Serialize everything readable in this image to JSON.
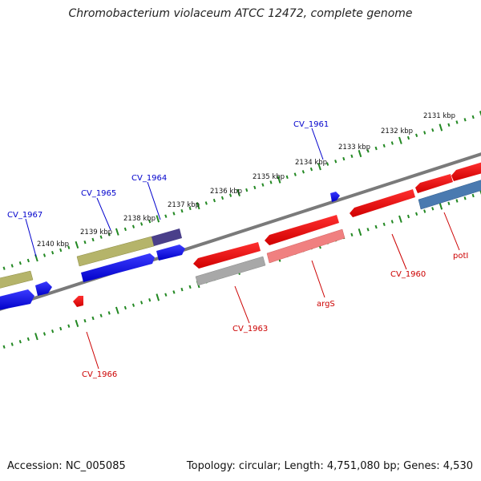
{
  "title": "Chromobacterium violaceum ATCC 12472, complete genome",
  "footer": {
    "accession": "Accession: NC_005085",
    "summary": "Topology: circular; Length: 4,751,080 bp; Genes: 4,530"
  },
  "kbp_labels": [
    "2131 kbp",
    "2132 kbp",
    "2133 kbp",
    "2134 kbp",
    "2135 kbp",
    "2136 kbp",
    "2137 kbp",
    "2138 kbp",
    "2139 kbp",
    "2140 kbp"
  ],
  "gene_labels": {
    "cv1961": "CV_1961",
    "cv1964": "CV_1964",
    "cv1965": "CV_1965",
    "cv1967": "CV_1967",
    "cv1960": "CV_1960",
    "cv1963": "CV_1963",
    "cv1966": "CV_1966",
    "argS": "argS",
    "potI": "potI"
  },
  "colors": {
    "forward_cds": "#0000ee",
    "forward_other": "#b5b46a",
    "forward_dark": "#4a3f8a",
    "reverse_cds": "#ee0000",
    "reverse_light": "#f08080",
    "reverse_grey": "#a8a8a8",
    "reverse_steel": "#4a7ab0",
    "backbone": "#777777",
    "ticks": "#228822",
    "label_forward": "#0000cc",
    "label_reverse": "#cc0000"
  }
}
